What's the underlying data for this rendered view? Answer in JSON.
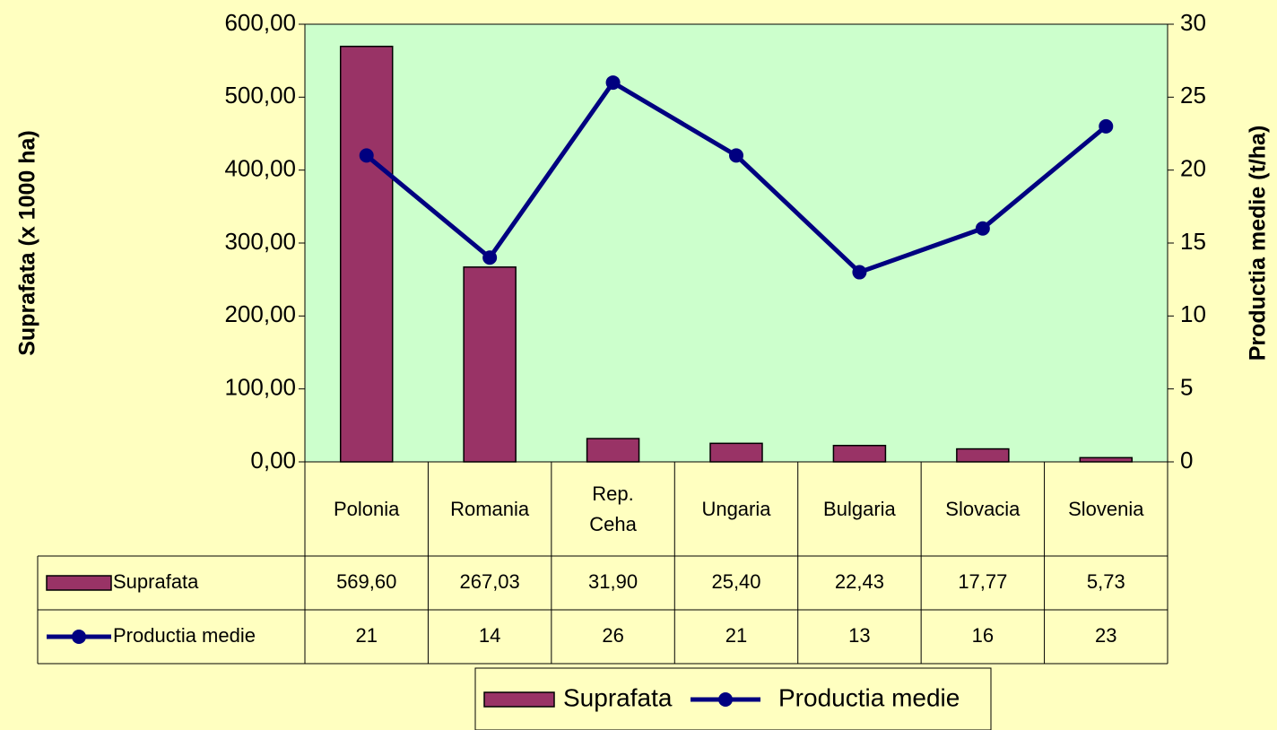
{
  "chart_data": {
    "type": "bar",
    "categories": [
      "Polonia",
      "Romania",
      "Rep. Ceha",
      "Ungaria",
      "Bulgaria",
      "Slovacia",
      "Slovenia"
    ],
    "series": [
      {
        "name": "Suprafata",
        "type": "bar",
        "color": "#993366",
        "values": [
          569.6,
          267.03,
          31.9,
          25.4,
          22.43,
          17.77,
          5.73
        ],
        "value_labels": [
          "569,60",
          "267,03",
          "31,90",
          "25,40",
          "22,43",
          "17,77",
          "5,73"
        ]
      },
      {
        "name": "Productia medie",
        "type": "line",
        "axis": "y2",
        "color": "#000080",
        "values": [
          21,
          14,
          26,
          21,
          13,
          16,
          23
        ]
      }
    ],
    "ylabel": "Suprafata (x 1000 ha)",
    "y2label": "Productia medie (t/ha)",
    "ylim": [
      0,
      600
    ],
    "yticks": [
      {
        "value": 0,
        "label": "0,00"
      },
      {
        "value": 100,
        "label": "100,00"
      },
      {
        "value": 200,
        "label": "200,00"
      },
      {
        "value": 300,
        "label": "300,00"
      },
      {
        "value": 400,
        "label": "400,00"
      },
      {
        "value": 500,
        "label": "500,00"
      },
      {
        "value": 600,
        "label": "600,00"
      }
    ],
    "y2lim": [
      0,
      30
    ],
    "y2ticks": [
      0,
      5,
      10,
      15,
      20,
      25,
      30
    ],
    "data_table": true,
    "legend": "bottom"
  }
}
